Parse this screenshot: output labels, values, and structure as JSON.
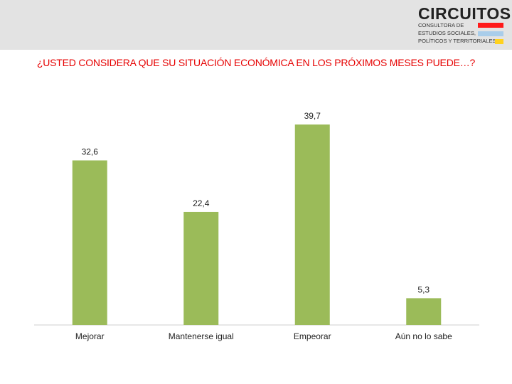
{
  "logo": {
    "wordmark": "CIRCUITOS",
    "line1": "CONSULTORA DE",
    "line2": "ESTUDIOS SOCIALES,",
    "line3": "POLÍTICOS Y TERRITORIALES",
    "colors": [
      "#ff1a1a",
      "#a9cdea",
      "#ffd21f"
    ]
  },
  "colors": {
    "bar": "#9bbb59",
    "title": "#e60000",
    "header_band": "#e3e3e3"
  },
  "chart_data": {
    "type": "bar",
    "title": "¿USTED CONSIDERA QUE SU SITUACIÓN ECONÓMICA EN LOS PRÓXIMOS MESES PUEDE…?",
    "categories": [
      "Mejorar",
      "Mantenerse igual",
      "Empeorar",
      "Aún no lo sabe"
    ],
    "values": [
      32.6,
      22.4,
      39.7,
      5.3
    ],
    "value_labels": [
      "32,6",
      "22,4",
      "39,7",
      "5,3"
    ],
    "xlabel": "",
    "ylabel": "",
    "ylim": [
      0,
      45
    ],
    "grid": false,
    "legend": "none"
  }
}
